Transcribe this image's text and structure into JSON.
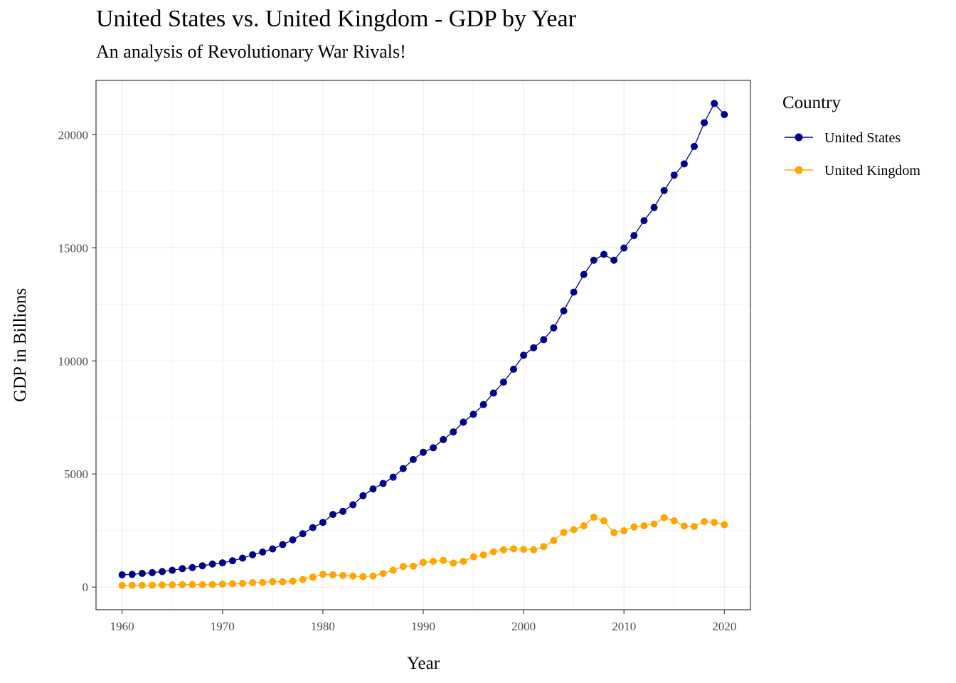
{
  "chart_data": {
    "type": "line",
    "title": "United States vs. United Kingdom - GDP by Year",
    "subtitle": "An analysis of Revolutionary War Rivals!",
    "xlabel": "Year",
    "ylabel": "GDP in Billions",
    "xlim": [
      1957.4,
      2022.6
    ],
    "ylim": [
      -1000,
      22400
    ],
    "x_ticks": [
      1960,
      1970,
      1980,
      1990,
      2000,
      2010,
      2020
    ],
    "y_ticks": [
      0,
      5000,
      10000,
      15000,
      20000
    ],
    "grid": true,
    "legend": {
      "title": "Country",
      "position": "right",
      "entries": [
        "United States",
        "United Kingdom"
      ]
    },
    "x": [
      1960,
      1961,
      1962,
      1963,
      1964,
      1965,
      1966,
      1967,
      1968,
      1969,
      1970,
      1971,
      1972,
      1973,
      1974,
      1975,
      1976,
      1977,
      1978,
      1979,
      1980,
      1981,
      1982,
      1983,
      1984,
      1985,
      1986,
      1987,
      1988,
      1989,
      1990,
      1991,
      1992,
      1993,
      1994,
      1995,
      1996,
      1997,
      1998,
      1999,
      2000,
      2001,
      2002,
      2003,
      2004,
      2005,
      2006,
      2007,
      2008,
      2009,
      2010,
      2011,
      2012,
      2013,
      2014,
      2015,
      2016,
      2017,
      2018,
      2019,
      2020
    ],
    "series": [
      {
        "name": "United States",
        "color": "#00008b",
        "values": [
          543,
          563,
          605,
          639,
          686,
          744,
          815,
          862,
          943,
          1020,
          1073,
          1165,
          1280,
          1430,
          1550,
          1690,
          1880,
          2090,
          2360,
          2630,
          2860,
          3210,
          3350,
          3640,
          4040,
          4340,
          4580,
          4860,
          5240,
          5640,
          5960,
          6160,
          6520,
          6860,
          7290,
          7640,
          8070,
          8580,
          9060,
          9630,
          10250,
          10580,
          10940,
          11460,
          12210,
          13040,
          13820,
          14450,
          14710,
          14450,
          14990,
          15540,
          16200,
          16780,
          17530,
          18210,
          18710,
          19480,
          20530,
          21380,
          20890
        ]
      },
      {
        "name": "United Kingdom",
        "color": "#ffa500",
        "values": [
          73,
          78,
          81,
          86,
          94,
          101,
          108,
          111,
          105,
          112,
          131,
          148,
          169,
          193,
          206,
          241,
          232,
          263,
          336,
          438,
          565,
          540,
          515,
          489,
          461,
          489,
          601,
          745,
          910,
          927,
          1090,
          1140,
          1180,
          1060,
          1140,
          1340,
          1420,
          1560,
          1650,
          1690,
          1670,
          1650,
          1790,
          2060,
          2420,
          2540,
          2710,
          3090,
          2930,
          2410,
          2490,
          2660,
          2710,
          2790,
          3070,
          2930,
          2700,
          2680,
          2900,
          2860,
          2760
        ]
      }
    ]
  }
}
